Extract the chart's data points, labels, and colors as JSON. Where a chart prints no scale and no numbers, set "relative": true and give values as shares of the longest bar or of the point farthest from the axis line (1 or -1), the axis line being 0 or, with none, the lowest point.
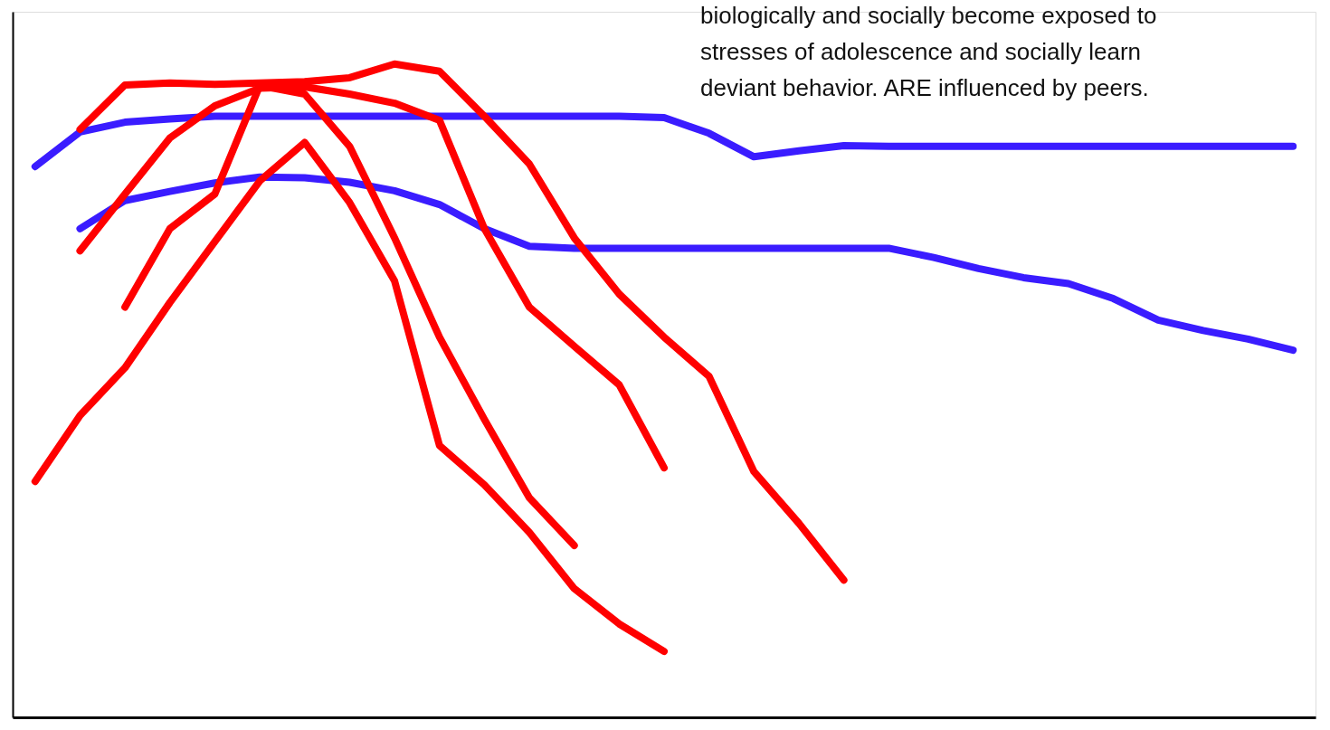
{
  "chart_data": {
    "type": "line",
    "relative": true,
    "categories": [
      null,
      null,
      null,
      null,
      null,
      null,
      null,
      null,
      null,
      null,
      null,
      null,
      null,
      null,
      null,
      null,
      null,
      null,
      null,
      null,
      null,
      null,
      null,
      null,
      null,
      null,
      null,
      null,
      null
    ],
    "series": [
      {
        "color": "#3a1cff",
        "values": [
          0.843,
          0.896,
          0.911,
          0.916,
          0.92,
          0.92,
          0.92,
          0.92,
          0.92,
          0.92,
          0.92,
          0.92,
          0.92,
          0.92,
          0.918,
          0.894,
          0.858,
          0.867,
          0.875,
          0.874,
          0.874,
          0.874,
          0.874,
          0.874,
          0.874,
          0.874,
          0.874,
          0.874,
          0.874
        ]
      },
      {
        "color": "#3a1cff",
        "values": [
          null,
          0.748,
          0.791,
          0.805,
          0.818,
          0.827,
          0.826,
          0.819,
          0.806,
          0.785,
          0.748,
          0.721,
          0.718,
          0.718,
          0.718,
          0.718,
          0.718,
          0.718,
          0.718,
          0.718,
          0.704,
          0.687,
          0.673,
          0.664,
          0.641,
          0.608,
          0.592,
          0.579,
          0.562
        ]
      },
      {
        "color": "#ff0000",
        "values": [
          0.361,
          0.462,
          0.535,
          0.635,
          0.728,
          0.821,
          0.88,
          0.788,
          0.668,
          0.416,
          0.356,
          0.283,
          0.197,
          0.143,
          0.101,
          null,
          null,
          null,
          null,
          null,
          null,
          null,
          null,
          null,
          null,
          null,
          null,
          null,
          null
        ]
      },
      {
        "color": "#ff0000",
        "values": [
          null,
          null,
          0.628,
          0.748,
          0.801,
          0.967,
          0.954,
          0.874,
          0.734,
          0.582,
          0.456,
          0.336,
          0.263,
          null,
          null,
          null,
          null,
          null,
          null,
          null,
          null,
          null,
          null,
          null,
          null,
          null,
          null,
          null,
          null
        ]
      },
      {
        "color": "#ff0000",
        "values": [
          null,
          0.714,
          0.801,
          0.887,
          0.936,
          0.963,
          0.965,
          0.954,
          0.94,
          0.914,
          0.748,
          0.628,
          0.568,
          0.509,
          0.382,
          null,
          null,
          null,
          null,
          null,
          null,
          null,
          null,
          null,
          null,
          null,
          null,
          null,
          null
        ]
      },
      {
        "color": "#ff0000",
        "values": [
          null,
          0.9,
          0.968,
          0.971,
          0.969,
          0.971,
          0.973,
          0.979,
          1.0,
          0.989,
          0.92,
          0.847,
          0.734,
          0.648,
          0.582,
          0.522,
          0.376,
          0.297,
          0.21,
          null,
          null,
          null,
          null,
          null,
          null,
          null,
          null,
          null,
          null
        ]
      }
    ],
    "annotations": [
      "biologically and socially become exposed to",
      "stresses of adolescence and socially learn",
      "deviant behavior.  ARE influenced by peers."
    ]
  }
}
